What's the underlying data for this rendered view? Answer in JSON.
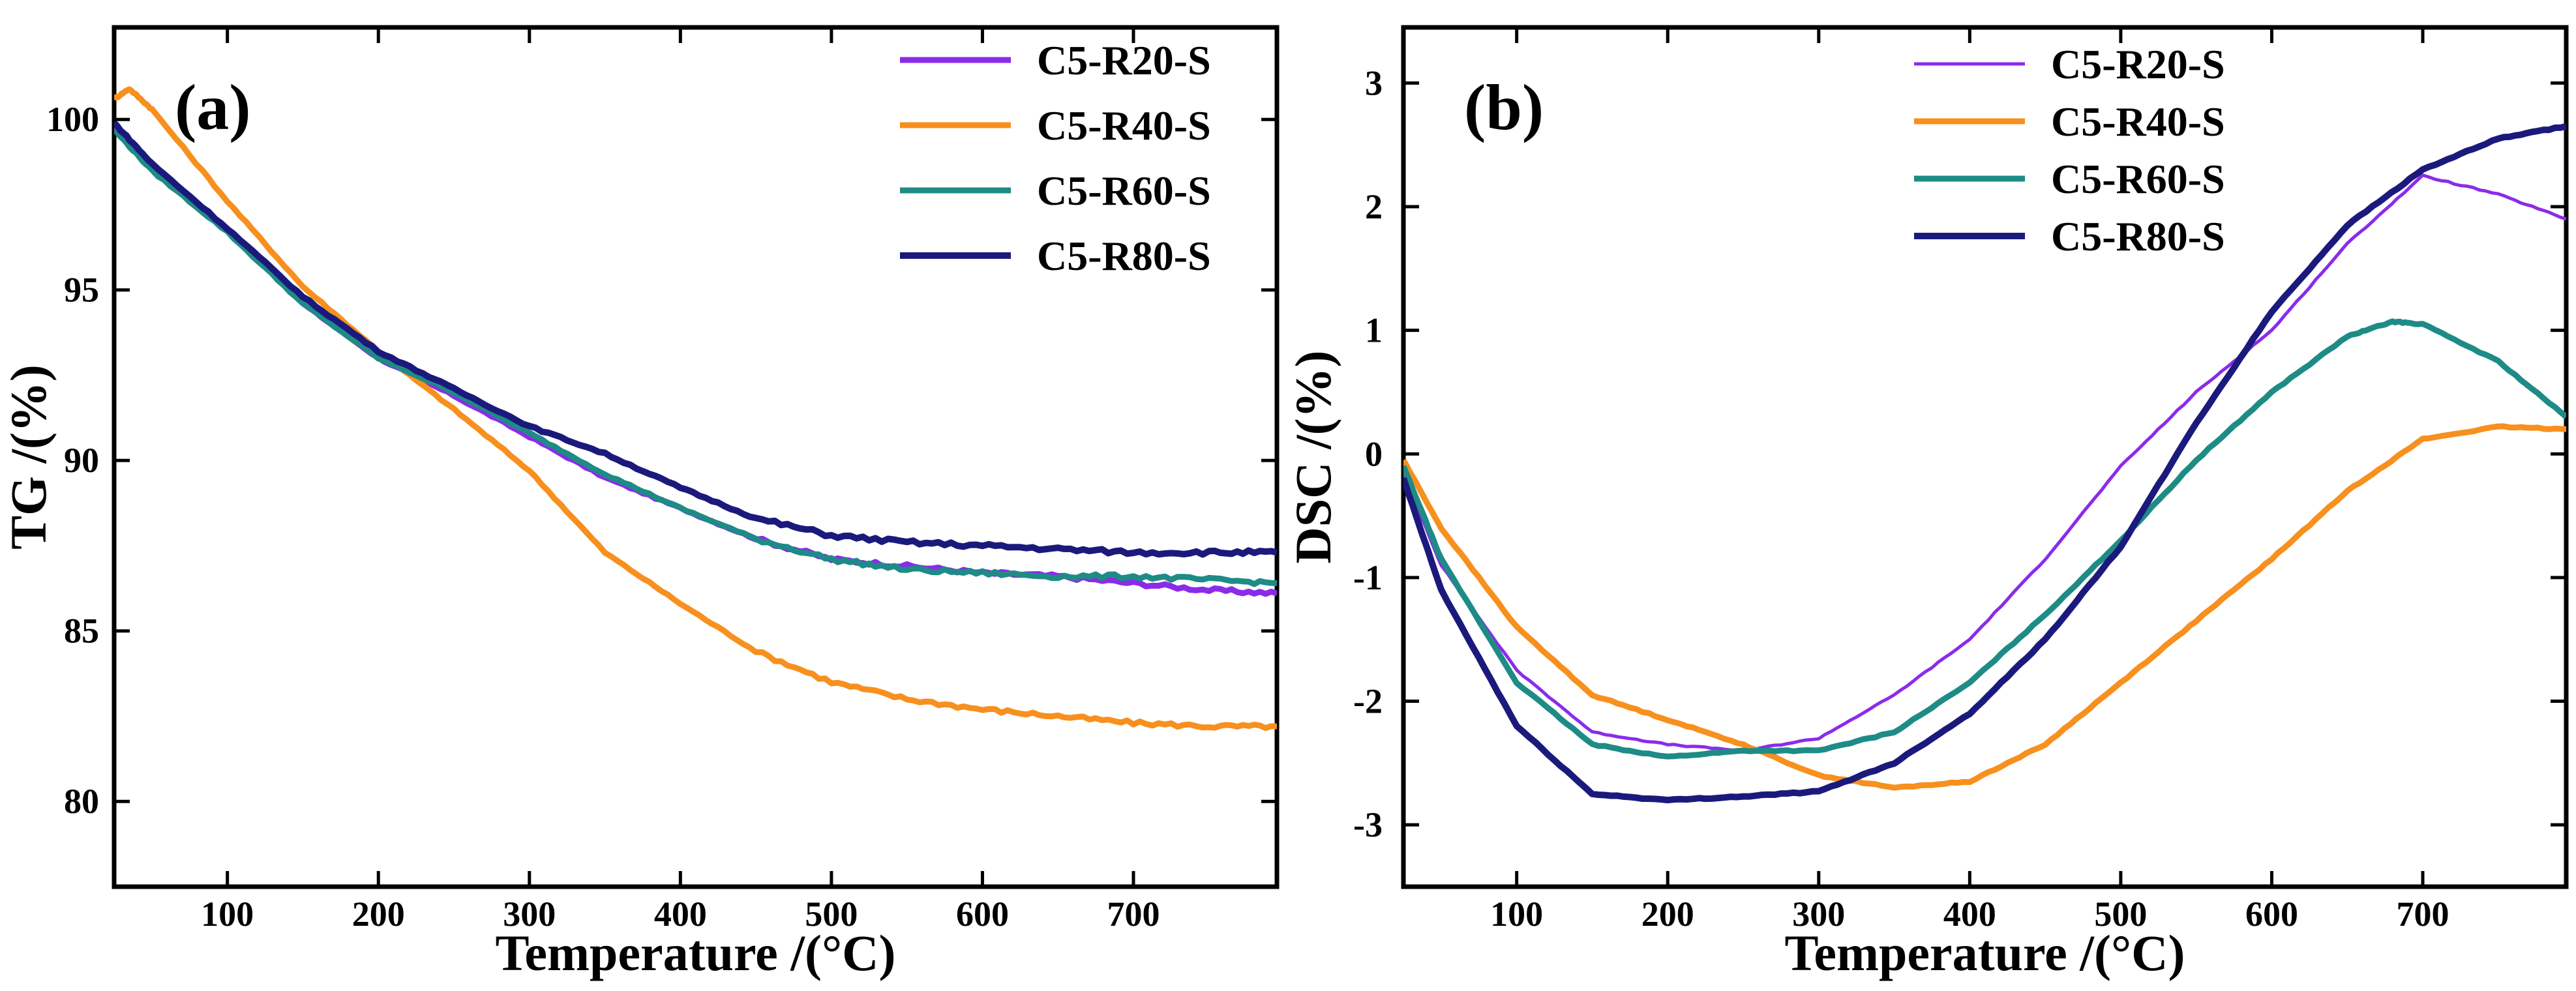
{
  "chart_data": [
    {
      "type": "line",
      "panel_label": "(a)",
      "xlabel": "Temperature /(°C)",
      "ylabel": "TG /(%)",
      "xlim": [
        25,
        795
      ],
      "ylim": [
        77.5,
        102.7
      ],
      "xticks": [
        100,
        200,
        300,
        400,
        500,
        600,
        700
      ],
      "yticks": [
        80,
        85,
        90,
        95,
        100
      ],
      "legend_position": "top-right",
      "series": [
        {
          "name": "C5-R20-S",
          "color": "#8B2BEA",
          "x": [
            25,
            50,
            100,
            150,
            200,
            250,
            300,
            350,
            400,
            450,
            500,
            550,
            600,
            650,
            700,
            750,
            795
          ],
          "y": [
            99.8,
            98.6,
            96.8,
            94.6,
            93.0,
            91.9,
            90.7,
            89.5,
            88.6,
            87.7,
            87.1,
            86.9,
            86.7,
            86.6,
            86.4,
            86.2,
            86.1
          ]
        },
        {
          "name": "C5-R40-S",
          "color": "#F7901E",
          "x": [
            25,
            35,
            50,
            100,
            150,
            200,
            250,
            300,
            350,
            400,
            450,
            500,
            550,
            600,
            650,
            700,
            750,
            795
          ],
          "y": [
            100.6,
            100.9,
            100.3,
            97.6,
            95.1,
            93.2,
            91.5,
            89.7,
            87.3,
            85.8,
            84.4,
            83.5,
            83.0,
            82.7,
            82.5,
            82.3,
            82.2,
            82.2
          ]
        },
        {
          "name": "C5-R60-S",
          "color": "#1E8B86",
          "x": [
            25,
            50,
            100,
            150,
            200,
            250,
            300,
            350,
            400,
            450,
            500,
            550,
            600,
            650,
            700,
            750,
            795
          ],
          "y": [
            99.7,
            98.5,
            96.7,
            94.6,
            93.0,
            92.0,
            90.8,
            89.6,
            88.6,
            87.7,
            87.1,
            86.8,
            86.7,
            86.6,
            86.6,
            86.5,
            86.4
          ]
        },
        {
          "name": "C5-R80-S",
          "color": "#1B1A7C",
          "x": [
            25,
            50,
            100,
            150,
            200,
            250,
            300,
            350,
            400,
            450,
            500,
            550,
            600,
            650,
            700,
            750,
            795
          ],
          "y": [
            99.9,
            98.7,
            96.8,
            94.8,
            93.2,
            92.1,
            91.0,
            90.2,
            89.2,
            88.3,
            87.8,
            87.6,
            87.5,
            87.4,
            87.3,
            87.3,
            87.3
          ]
        }
      ]
    },
    {
      "type": "line",
      "panel_label": "(b)",
      "xlabel": "Temperature /(°C)",
      "ylabel": "DSC /(%)",
      "xlim": [
        25,
        795
      ],
      "ylim": [
        -3.5,
        3.45
      ],
      "xticks": [
        100,
        200,
        300,
        400,
        500,
        600,
        700
      ],
      "yticks": [
        -3,
        -2,
        -1,
        0,
        1,
        2,
        3
      ],
      "legend_position": "top-center",
      "series": [
        {
          "name": "C5-R20-S",
          "color": "#8B2BEA",
          "x": [
            25,
            50,
            100,
            150,
            200,
            250,
            300,
            350,
            400,
            450,
            500,
            550,
            600,
            650,
            700,
            750,
            795
          ],
          "y": [
            -0.15,
            -0.9,
            -1.75,
            -2.25,
            -2.35,
            -2.4,
            -2.3,
            -1.95,
            -1.5,
            -0.85,
            -0.1,
            0.5,
            1.0,
            1.7,
            2.25,
            2.1,
            1.9
          ]
        },
        {
          "name": "C5-R40-S",
          "color": "#F7901E",
          "x": [
            25,
            50,
            100,
            150,
            200,
            250,
            300,
            350,
            400,
            450,
            500,
            550,
            600,
            650,
            700,
            750,
            795
          ],
          "y": [
            -0.05,
            -0.6,
            -1.4,
            -1.95,
            -2.15,
            -2.35,
            -2.6,
            -2.7,
            -2.65,
            -2.35,
            -1.85,
            -1.35,
            -0.85,
            -0.3,
            0.12,
            0.22,
            0.2
          ]
        },
        {
          "name": "C5-R60-S",
          "color": "#1E8B86",
          "x": [
            25,
            50,
            100,
            150,
            200,
            250,
            300,
            350,
            400,
            450,
            500,
            550,
            600,
            650,
            680,
            700,
            750,
            795
          ],
          "y": [
            -0.1,
            -0.85,
            -1.85,
            -2.35,
            -2.45,
            -2.4,
            -2.4,
            -2.25,
            -1.85,
            -1.3,
            -0.7,
            -0.05,
            0.5,
            0.95,
            1.07,
            1.05,
            0.75,
            0.3
          ]
        },
        {
          "name": "C5-R80-S",
          "color": "#1B1A7C",
          "x": [
            25,
            50,
            100,
            150,
            200,
            250,
            300,
            350,
            400,
            450,
            500,
            550,
            600,
            650,
            700,
            750,
            795
          ],
          "y": [
            -0.2,
            -1.1,
            -2.2,
            -2.75,
            -2.8,
            -2.77,
            -2.73,
            -2.5,
            -2.1,
            -1.5,
            -0.75,
            0.25,
            1.15,
            1.85,
            2.3,
            2.55,
            2.65
          ]
        }
      ]
    }
  ]
}
